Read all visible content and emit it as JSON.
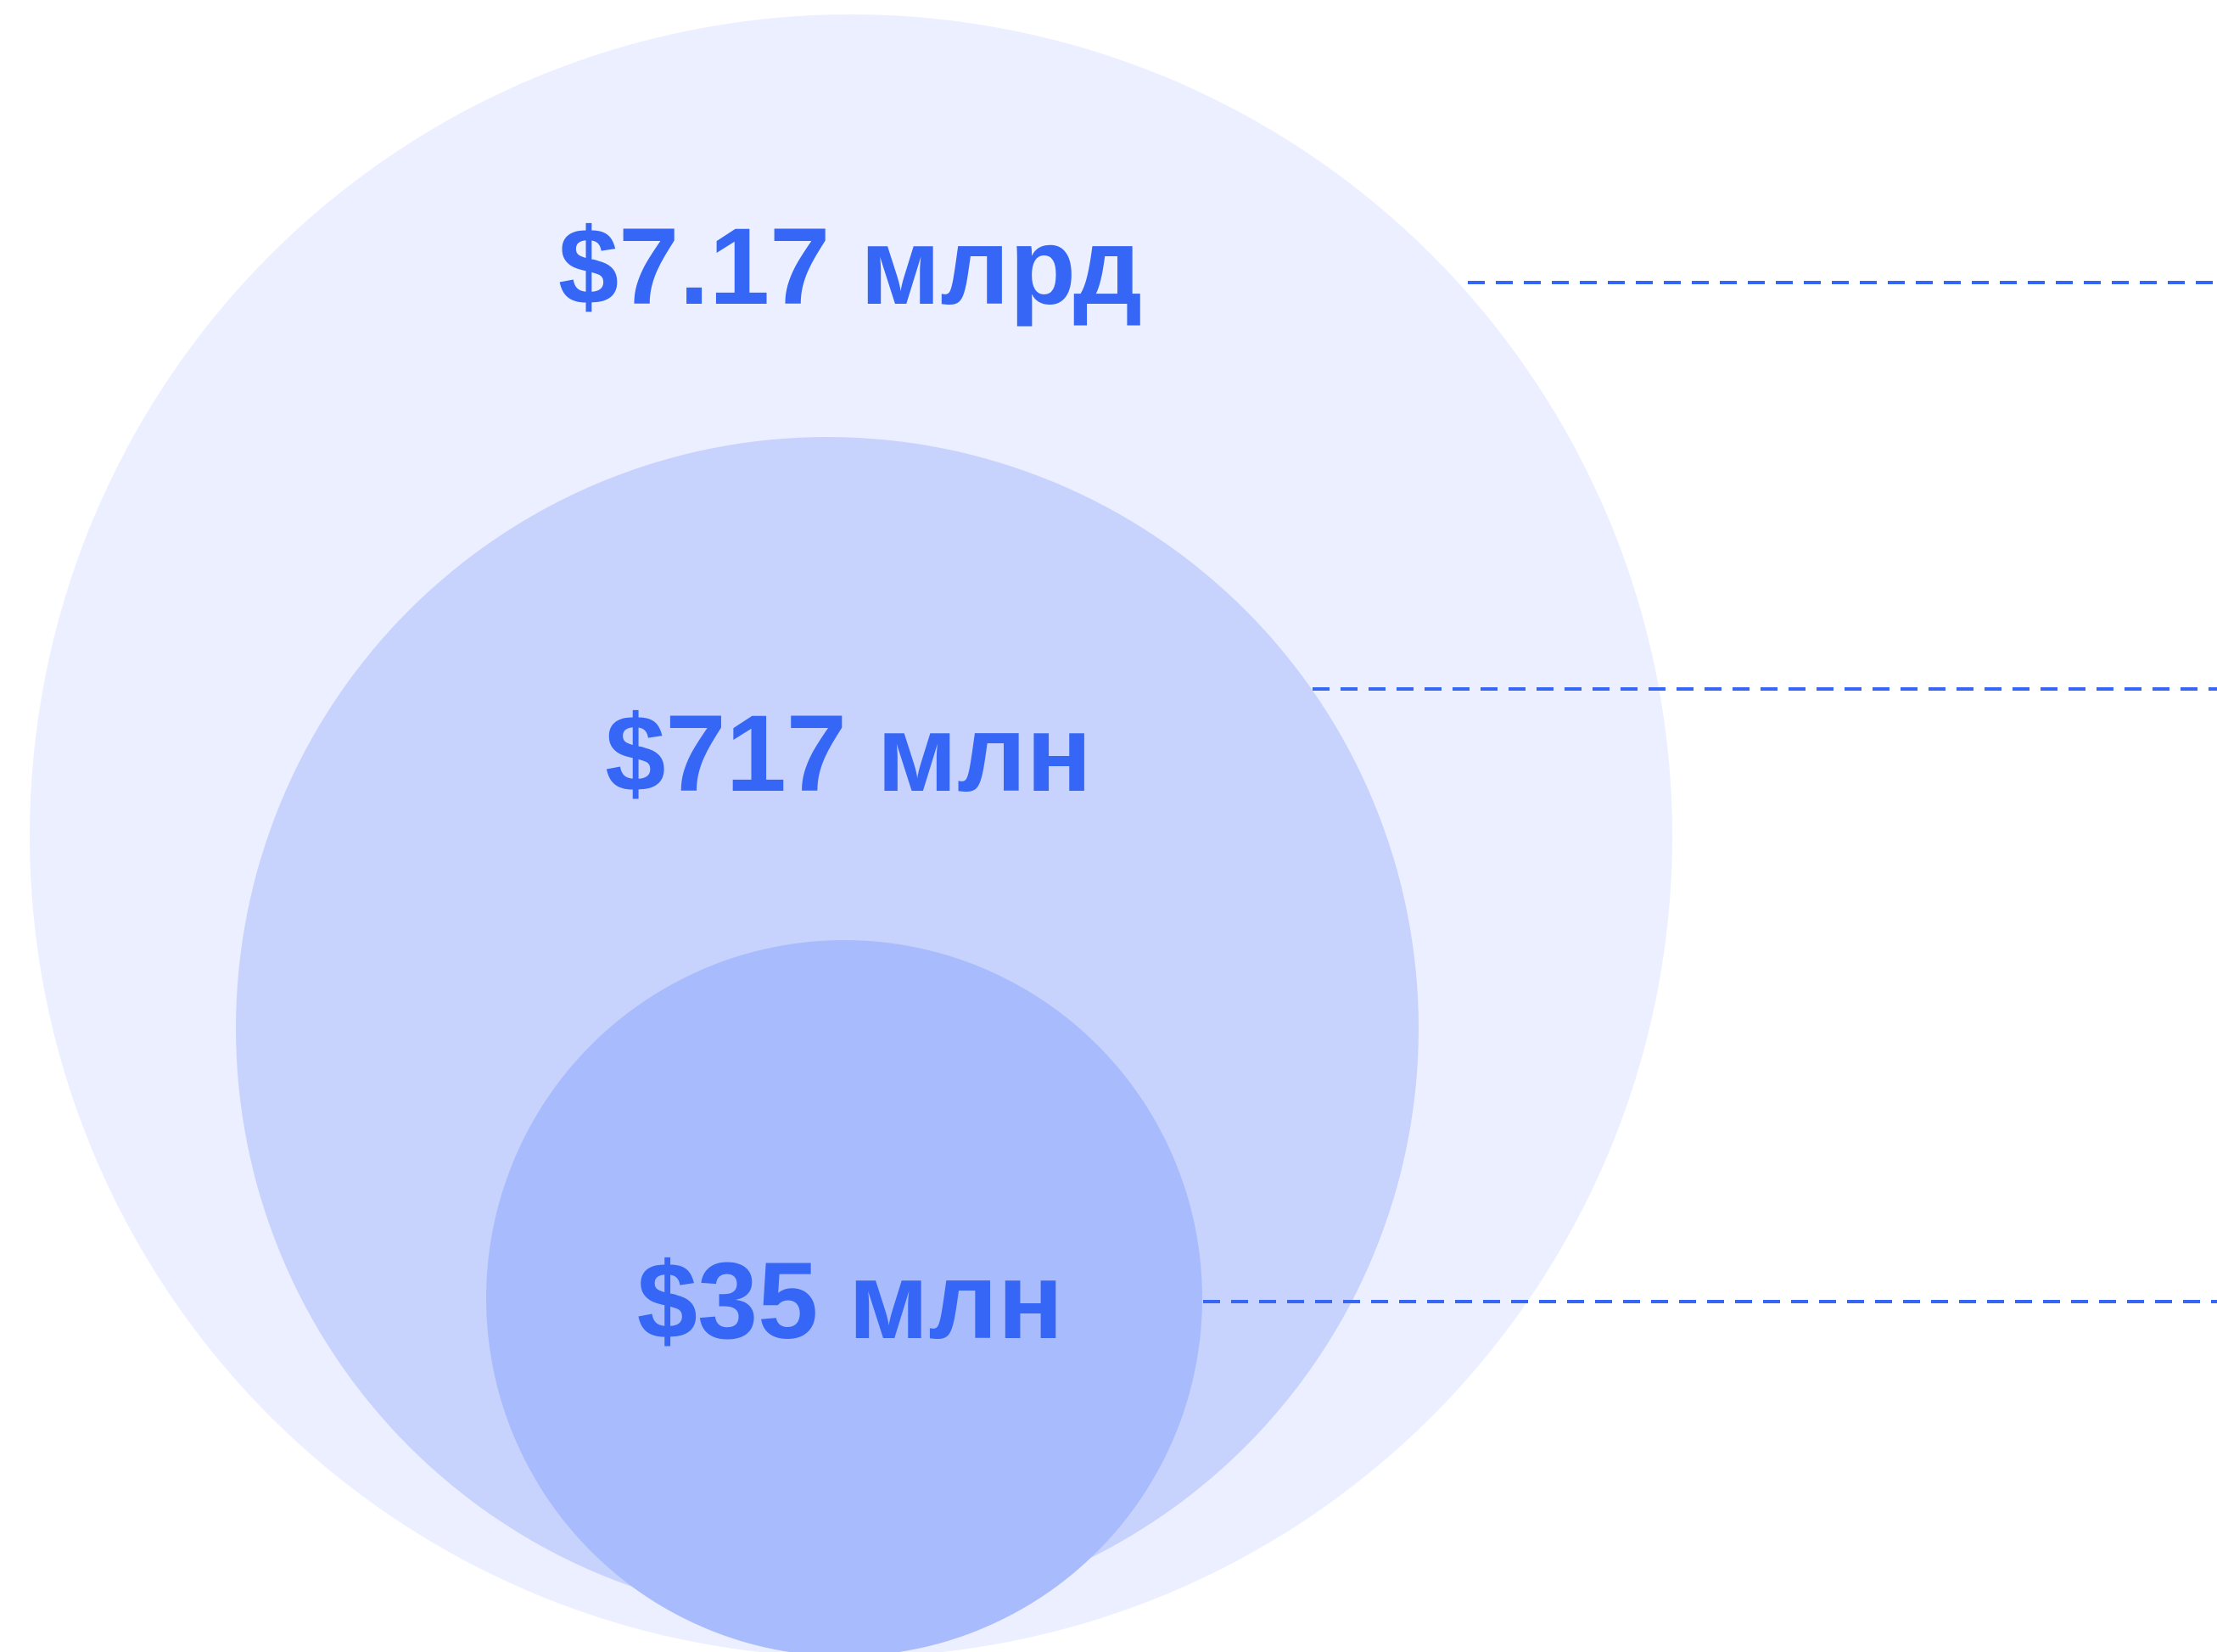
{
  "circles": [
    {
      "label": "$7.17 млрд"
    },
    {
      "label": "$717 млн"
    },
    {
      "label": "$35 млн"
    }
  ]
}
